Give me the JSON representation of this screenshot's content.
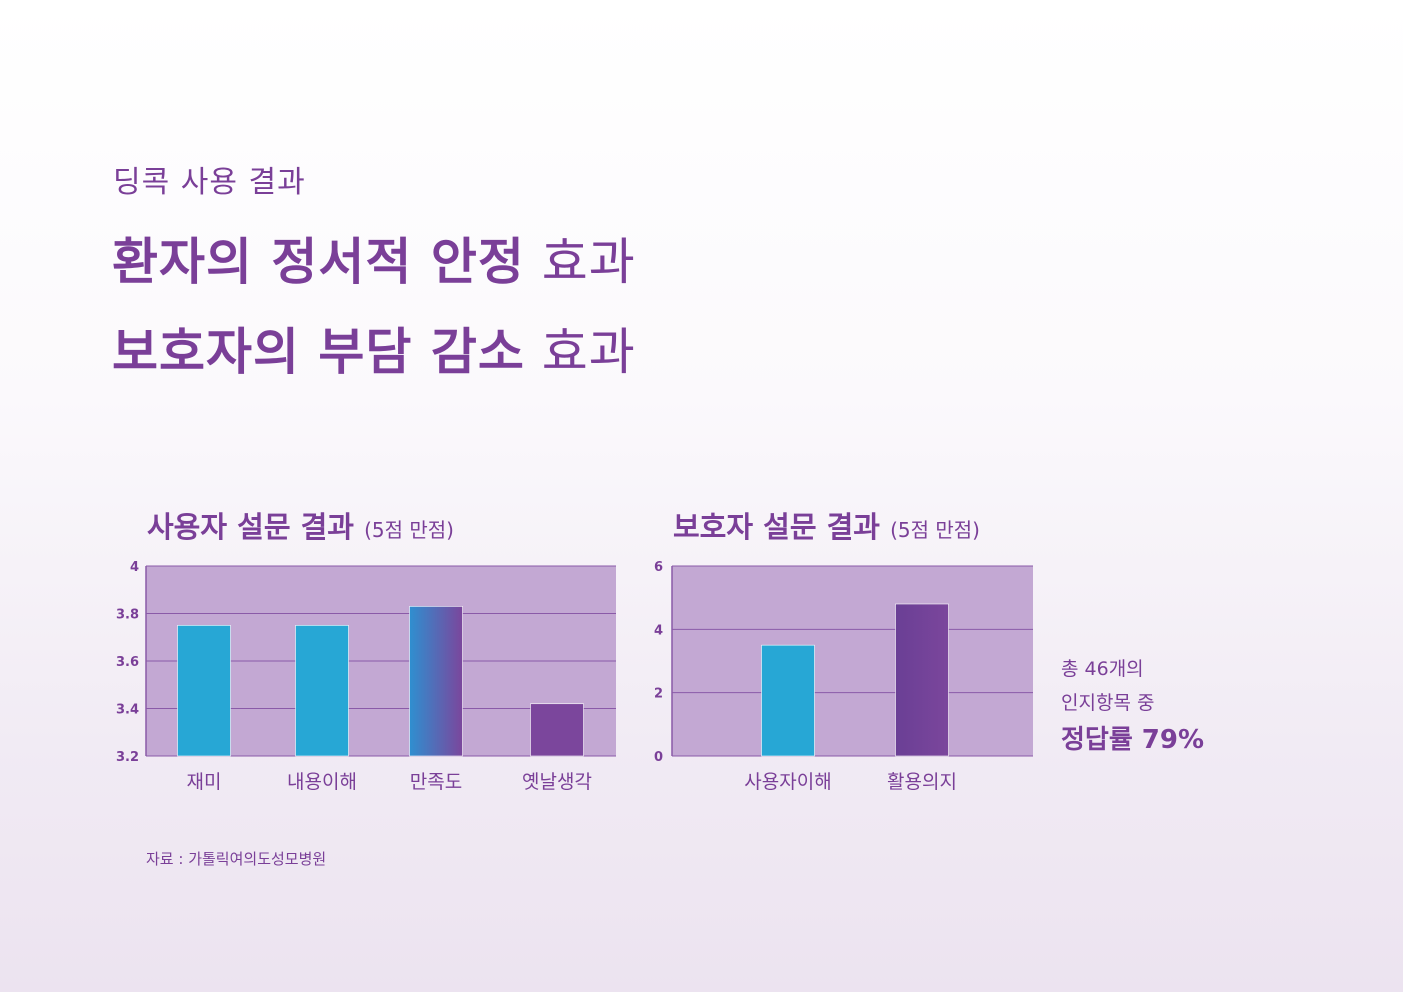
{
  "header": {
    "eyebrow": "딩콕 사용 결과",
    "line1_bold": "환자의 정서적 안정",
    "line1_light": " 효과",
    "line2_bold": "보호자의 부담 감소",
    "line2_light": " 효과"
  },
  "side_note": {
    "line1": "총 46개의",
    "line2": "인지항목 중",
    "line3": "정답률 79%"
  },
  "source": "자료 : 가톨릭여의도성모병원",
  "colors": {
    "brand_purple": "#7a3f98",
    "plot_bg": "#c3a8d3",
    "bar_cyan": "#27a7d5",
    "bar_gradient_start": "#2f8fd0",
    "bar_purple": "#7b469c"
  },
  "chart_data": [
    {
      "type": "bar",
      "title": "사용자 설문 결과",
      "subtitle": "(5점 만점)",
      "categories": [
        "재미",
        "내용이해",
        "만족도",
        "옛날생각"
      ],
      "values": [
        3.75,
        3.75,
        3.83,
        3.42
      ],
      "ylim": [
        3.2,
        4
      ],
      "yticks": [
        "3.2",
        "3.4",
        "3.6",
        "3.8",
        "4"
      ],
      "bar_styles": [
        "cyan",
        "cyan",
        "gradient",
        "purple"
      ],
      "grid": true
    },
    {
      "type": "bar",
      "title": "보호자 설문 결과",
      "subtitle": "(5점 만점)",
      "categories": [
        "사용자이해",
        "활용의지"
      ],
      "values": [
        3.5,
        4.8
      ],
      "ylim": [
        0,
        6
      ],
      "yticks": [
        "0",
        "2",
        "4",
        "6"
      ],
      "bar_styles": [
        "cyan",
        "gradient-purple"
      ],
      "grid": true
    }
  ]
}
